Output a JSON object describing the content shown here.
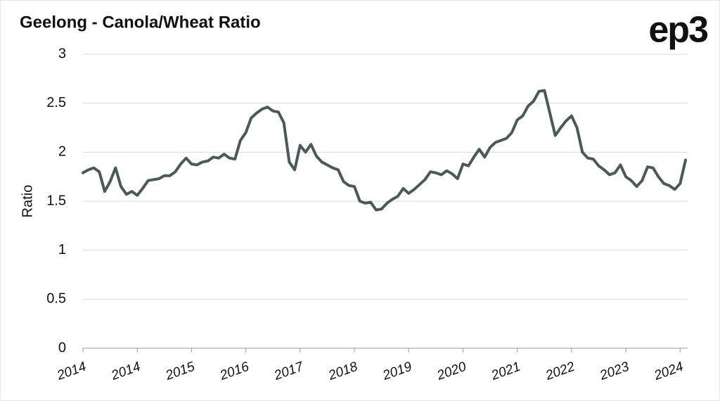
{
  "chart_data": {
    "type": "line",
    "title": "Geelong - Canola/Wheat Ratio",
    "logo": "ep3",
    "ylabel": "Ratio",
    "categories": [
      "2014",
      null,
      null,
      null,
      null,
      null,
      null,
      null,
      null,
      null,
      "2014",
      null,
      null,
      null,
      null,
      null,
      null,
      null,
      null,
      null,
      "2015",
      null,
      null,
      null,
      null,
      null,
      null,
      null,
      null,
      null,
      "2016",
      null,
      null,
      null,
      null,
      null,
      null,
      null,
      null,
      null,
      "2017",
      null,
      null,
      null,
      null,
      null,
      null,
      null,
      null,
      null,
      "2018",
      null,
      null,
      null,
      null,
      null,
      null,
      null,
      null,
      null,
      "2019",
      null,
      null,
      null,
      null,
      null,
      null,
      null,
      null,
      null,
      "2020",
      null,
      null,
      null,
      null,
      null,
      null,
      null,
      null,
      null,
      "2021",
      null,
      null,
      null,
      null,
      null,
      null,
      null,
      null,
      null,
      "2022",
      null,
      null,
      null,
      null,
      null,
      null,
      null,
      null,
      null,
      "2023",
      null,
      null,
      null,
      null,
      null,
      null,
      null,
      null,
      null,
      "2024",
      null
    ],
    "values": [
      1.79,
      1.82,
      1.84,
      1.8,
      1.6,
      1.7,
      1.84,
      1.65,
      1.57,
      1.6,
      1.56,
      1.63,
      1.71,
      1.72,
      1.73,
      1.76,
      1.76,
      1.8,
      1.88,
      1.94,
      1.88,
      1.87,
      1.9,
      1.91,
      1.95,
      1.94,
      1.98,
      1.94,
      1.93,
      2.12,
      2.2,
      2.35,
      2.4,
      2.44,
      2.46,
      2.42,
      2.41,
      2.3,
      1.9,
      1.82,
      2.07,
      2.0,
      2.08,
      1.96,
      1.9,
      1.87,
      1.84,
      1.82,
      1.7,
      1.66,
      1.65,
      1.5,
      1.48,
      1.49,
      1.41,
      1.42,
      1.48,
      1.52,
      1.55,
      1.63,
      1.58,
      1.62,
      1.67,
      1.72,
      1.8,
      1.79,
      1.77,
      1.81,
      1.78,
      1.73,
      1.88,
      1.86,
      1.95,
      2.03,
      1.95,
      2.05,
      2.1,
      2.12,
      2.14,
      2.2,
      2.33,
      2.37,
      2.47,
      2.52,
      2.62,
      2.63,
      2.4,
      2.17,
      2.25,
      2.32,
      2.37,
      2.25,
      2.0,
      1.94,
      1.93,
      1.86,
      1.82,
      1.77,
      1.79,
      1.87,
      1.75,
      1.71,
      1.65,
      1.71,
      1.85,
      1.84,
      1.75,
      1.68,
      1.66,
      1.62,
      1.68,
      1.92
    ],
    "color": "#4a5a5a",
    "ylim": [
      0,
      3
    ],
    "yticks": [
      0,
      0.5,
      1,
      1.5,
      2,
      2.5,
      3
    ],
    "grid": true
  }
}
